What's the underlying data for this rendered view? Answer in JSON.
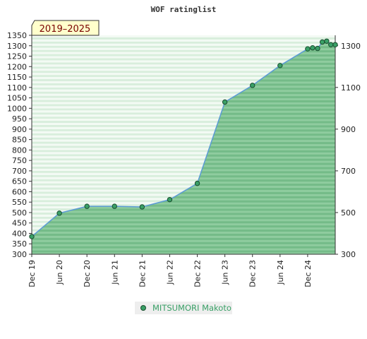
{
  "chart_data": {
    "type": "area",
    "title": "WOF ratinglist",
    "badge": "2019–2025",
    "x_tick_labels": [
      "Dec 19",
      "Jun 20",
      "Dec 20",
      "Jun 21",
      "Dec 21",
      "Jun 22",
      "Dec 22",
      "Jun 23",
      "Dec 23",
      "Jun 24",
      "Dec 24"
    ],
    "y_left_ticks": [
      300,
      350,
      400,
      450,
      500,
      550,
      600,
      650,
      700,
      750,
      800,
      850,
      900,
      950,
      1000,
      1050,
      1100,
      1150,
      1200,
      1250,
      1300,
      1350
    ],
    "y_right_ticks": [
      300,
      500,
      700,
      900,
      1100,
      1300
    ],
    "ylim": [
      300,
      1350
    ],
    "grid": false,
    "legend_position": "bottom-center",
    "series": [
      {
        "name": "MITSUMORI Makoto",
        "x": [
          0,
          1,
          2,
          3,
          4,
          5,
          6,
          7,
          8,
          9,
          10,
          10.18,
          10.36,
          10.53,
          10.69,
          10.84,
          11
        ],
        "values": [
          385,
          497,
          530,
          530,
          527,
          562,
          640,
          1030,
          1110,
          1205,
          1285,
          1290,
          1287,
          1318,
          1322,
          1305,
          1305
        ]
      }
    ],
    "colors": {
      "line": "#5b9bd5",
      "marker": "#3aa067",
      "marker_edge": "#1a4d2e",
      "area_dark": "#7cc291",
      "area_light": "#e8f5ea",
      "badge_bg": "#ffffcc"
    }
  }
}
